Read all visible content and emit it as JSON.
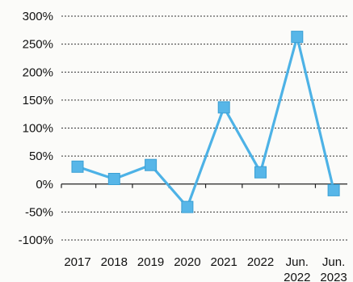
{
  "chart_data": {
    "type": "line",
    "title": "",
    "xlabel": "",
    "ylabel": "",
    "categories": [
      [
        "2017"
      ],
      [
        "2018"
      ],
      [
        "2019"
      ],
      [
        "2020"
      ],
      [
        "2021"
      ],
      [
        "2022"
      ],
      [
        "Jun.",
        "2022"
      ],
      [
        "Jun.",
        "2023"
      ]
    ],
    "series": [
      {
        "values": [
          31,
          9,
          34,
          -41,
          137,
          21,
          263,
          -11
        ]
      }
    ],
    "ylim": [
      -100,
      300
    ],
    "yticks": [
      -100,
      -50,
      0,
      50,
      100,
      150,
      200,
      250,
      300
    ],
    "ytick_labels": [
      "-100%",
      "-50%",
      "0%",
      "50%",
      "100%",
      "150%",
      "200%",
      "250%",
      "300%"
    ],
    "grid": true,
    "legend": "none",
    "colors": {
      "line": "#4db2e6",
      "marker": "#57b6e8",
      "marker_edge": "#3a9fd4"
    }
  }
}
